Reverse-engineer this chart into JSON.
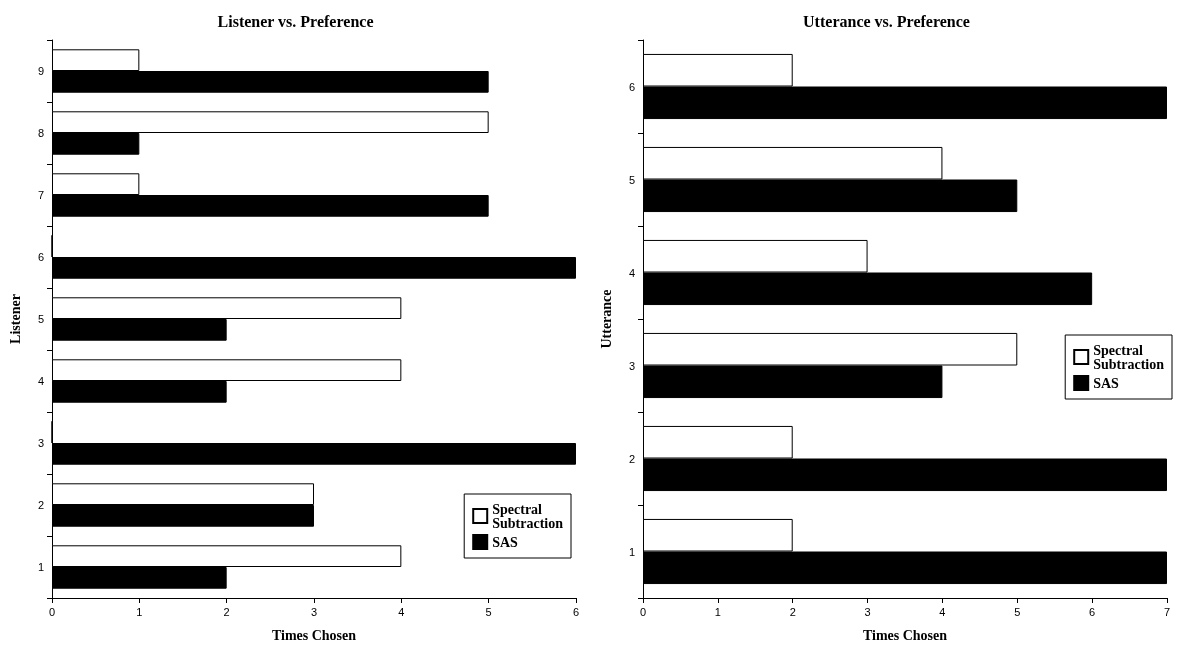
{
  "chart_data": [
    {
      "type": "bar",
      "orientation": "horizontal",
      "title": "Listener vs. Preference",
      "xlabel": "Times Chosen",
      "ylabel": "Listener",
      "categories": [
        "9",
        "8",
        "7",
        "6",
        "5",
        "4",
        "3",
        "2",
        "1"
      ],
      "series": [
        {
          "name": "Spectral Subtraction",
          "color": "#ffffff",
          "values": [
            1,
            5,
            1,
            0,
            4,
            4,
            0,
            3,
            4
          ]
        },
        {
          "name": "SAS",
          "color": "#000000",
          "values": [
            5,
            1,
            5,
            6,
            2,
            2,
            6,
            3,
            2
          ]
        }
      ],
      "xlim": [
        0,
        6
      ],
      "xticks": [
        0,
        1,
        2,
        3,
        4,
        5,
        6
      ],
      "grid": false,
      "legend": "bottom right"
    },
    {
      "type": "bar",
      "orientation": "horizontal",
      "title": "Utterance vs. Preference",
      "xlabel": "Times Chosen",
      "ylabel": "Utterance",
      "categories": [
        "6",
        "5",
        "4",
        "3",
        "2",
        "1"
      ],
      "series": [
        {
          "name": "Spectral Subtraction",
          "color": "#ffffff",
          "values": [
            2,
            4,
            3,
            5,
            2,
            2
          ]
        },
        {
          "name": "SAS",
          "color": "#000000",
          "values": [
            7,
            5,
            6,
            4,
            7,
            7
          ]
        }
      ],
      "xlim": [
        0,
        7
      ],
      "xticks": [
        0,
        1,
        2,
        3,
        4,
        5,
        6,
        7
      ],
      "grid": false,
      "legend": "right"
    }
  ]
}
